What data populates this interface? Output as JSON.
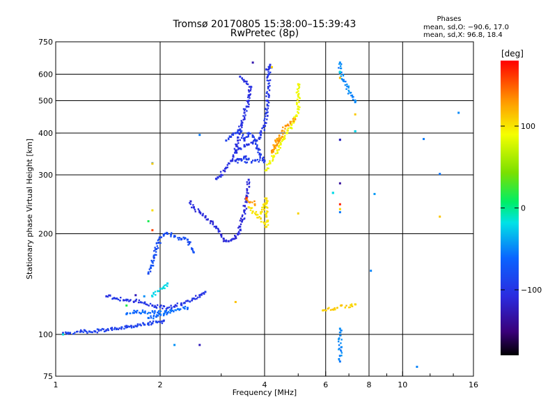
{
  "chart_data": {
    "type": "scatter",
    "title": "Tromsø 20170805 15:38:00–15:39:43",
    "subtitle": "RwPretec (8p)",
    "xlabel": "Frequency [MHz]",
    "ylabel": "Stationary phase Virtual Height [km]",
    "x_scale": "log",
    "y_scale": "log",
    "xlim": [
      1,
      16
    ],
    "ylim": [
      75,
      750
    ],
    "x_ticks": [
      1,
      2,
      4,
      6,
      8,
      10,
      16
    ],
    "y_ticks": [
      75,
      100,
      200,
      300,
      400,
      500,
      600,
      750
    ],
    "x_grid": [
      2,
      4,
      6,
      8,
      10
    ],
    "y_grid": [
      100,
      200,
      300,
      400,
      500,
      600
    ],
    "stats": {
      "heading": "Phases",
      "line_o": "mean, sd,O: −90.6, 17.0",
      "line_x": "mean, sd,X:  96.8, 18.4"
    },
    "colorbar": {
      "label": "[deg]",
      "range": [
        -180,
        180
      ],
      "ticks": [
        100,
        0,
        -100
      ]
    },
    "series": [
      {
        "phase": -90,
        "points": [
          [
            1.05,
            101
          ],
          [
            1.1,
            101
          ],
          [
            1.18,
            102
          ],
          [
            1.25,
            102
          ],
          [
            1.3,
            102
          ],
          [
            1.35,
            103
          ],
          [
            1.4,
            103
          ],
          [
            1.45,
            104
          ],
          [
            1.5,
            104
          ],
          [
            1.55,
            105
          ],
          [
            1.6,
            106
          ],
          [
            1.65,
            106
          ],
          [
            1.7,
            106
          ],
          [
            1.75,
            107
          ],
          [
            1.8,
            107
          ],
          [
            1.85,
            108
          ],
          [
            1.9,
            108
          ],
          [
            1.95,
            109
          ],
          [
            2.0,
            109
          ],
          [
            2.05,
            110
          ]
        ]
      },
      {
        "phase": -100,
        "points": [
          [
            1.4,
            130
          ],
          [
            1.5,
            128
          ],
          [
            1.6,
            127
          ],
          [
            1.7,
            126
          ],
          [
            1.8,
            124
          ],
          [
            1.9,
            122
          ],
          [
            2.0,
            121
          ],
          [
            2.1,
            120
          ],
          [
            2.2,
            121
          ],
          [
            2.3,
            123
          ],
          [
            2.4,
            126
          ],
          [
            2.5,
            128
          ],
          [
            2.6,
            131
          ],
          [
            2.7,
            134
          ]
        ]
      },
      {
        "phase": -60,
        "points": [
          [
            1.85,
            112
          ],
          [
            1.95,
            113
          ],
          [
            2.05,
            115
          ],
          [
            2.15,
            118
          ],
          [
            2.25,
            119
          ],
          [
            2.4,
            120
          ],
          [
            1.6,
            115
          ],
          [
            1.7,
            117
          ],
          [
            2.1,
            116
          ]
        ]
      },
      {
        "phase": -80,
        "points": [
          [
            1.85,
            152
          ],
          [
            1.88,
            158
          ],
          [
            1.9,
            165
          ],
          [
            1.92,
            172
          ],
          [
            1.95,
            180
          ],
          [
            1.98,
            188
          ],
          [
            2.0,
            195
          ],
          [
            2.05,
            199
          ],
          [
            2.1,
            200
          ],
          [
            2.15,
            199
          ],
          [
            2.2,
            197
          ],
          [
            2.3,
            193
          ],
          [
            2.4,
            192
          ],
          [
            2.5,
            176
          ]
        ]
      },
      {
        "phase": -110,
        "points": [
          [
            2.45,
            250
          ],
          [
            2.5,
            240
          ],
          [
            2.6,
            232
          ],
          [
            2.7,
            224
          ],
          [
            2.8,
            218
          ],
          [
            2.9,
            210
          ],
          [
            3.0,
            198
          ],
          [
            3.05,
            193
          ],
          [
            3.1,
            190
          ],
          [
            3.15,
            190
          ],
          [
            3.2,
            191
          ],
          [
            3.25,
            193
          ],
          [
            3.3,
            196
          ],
          [
            3.35,
            200
          ],
          [
            3.4,
            210
          ],
          [
            3.45,
            220
          ],
          [
            3.5,
            235
          ],
          [
            3.55,
            260
          ],
          [
            3.6,
            290
          ]
        ]
      },
      {
        "phase": -105,
        "points": [
          [
            2.9,
            292
          ],
          [
            3.0,
            300
          ],
          [
            3.1,
            315
          ],
          [
            3.2,
            330
          ],
          [
            3.25,
            340
          ],
          [
            3.3,
            355
          ],
          [
            3.35,
            380
          ],
          [
            3.4,
            410
          ],
          [
            3.45,
            430
          ],
          [
            3.5,
            460
          ],
          [
            3.55,
            480
          ],
          [
            3.6,
            500
          ],
          [
            3.62,
            520
          ],
          [
            3.65,
            550
          ],
          [
            3.4,
            590
          ]
        ]
      },
      {
        "phase": -100,
        "points": [
          [
            3.3,
            350
          ],
          [
            3.4,
            360
          ],
          [
            3.5,
            365
          ],
          [
            3.6,
            370
          ],
          [
            3.7,
            375
          ],
          [
            3.8,
            380
          ],
          [
            3.9,
            395
          ],
          [
            4.0,
            420
          ],
          [
            4.05,
            460
          ],
          [
            4.08,
            500
          ],
          [
            4.1,
            550
          ],
          [
            4.12,
            600
          ],
          [
            4.15,
            640
          ],
          [
            4.05,
            620
          ]
        ]
      },
      {
        "phase": -95,
        "points": [
          [
            3.1,
            380
          ],
          [
            3.2,
            390
          ],
          [
            3.3,
            400
          ],
          [
            3.4,
            410
          ],
          [
            3.5,
            380
          ],
          [
            3.6,
            400
          ],
          [
            3.7,
            390
          ],
          [
            3.8,
            360
          ],
          [
            3.9,
            345
          ],
          [
            4.0,
            330
          ],
          [
            3.3,
            330
          ],
          [
            3.5,
            340
          ],
          [
            3.6,
            335
          ]
        ]
      },
      {
        "phase": 90,
        "points": [
          [
            4.05,
            310
          ],
          [
            4.15,
            325
          ],
          [
            4.25,
            340
          ],
          [
            4.35,
            355
          ],
          [
            4.45,
            370
          ],
          [
            4.55,
            385
          ],
          [
            4.65,
            400
          ],
          [
            4.75,
            415
          ],
          [
            4.85,
            430
          ],
          [
            4.95,
            450
          ],
          [
            5.0,
            480
          ],
          [
            5.0,
            520
          ],
          [
            5.0,
            560
          ]
        ]
      },
      {
        "phase": 100,
        "points": [
          [
            3.6,
            240
          ],
          [
            3.7,
            233
          ],
          [
            3.8,
            228
          ],
          [
            3.9,
            222
          ],
          [
            4.0,
            215
          ],
          [
            4.05,
            210
          ],
          [
            4.05,
            225
          ],
          [
            4.05,
            240
          ],
          [
            4.05,
            255
          ],
          [
            4.0,
            245
          ],
          [
            3.9,
            230
          ]
        ]
      },
      {
        "phase": 130,
        "points": [
          [
            4.3,
            380
          ],
          [
            4.5,
            390
          ],
          [
            4.2,
            350
          ],
          [
            4.6,
            420
          ],
          [
            4.9,
            440
          ],
          [
            3.55,
            255
          ],
          [
            3.75,
            245
          ]
        ]
      },
      {
        "phase": -50,
        "points": [
          [
            1.9,
            325
          ],
          [
            2.6,
            395
          ],
          [
            6.6,
            650
          ],
          [
            6.6,
            605
          ],
          [
            7.3,
            495
          ],
          [
            8.3,
            263
          ],
          [
            11.5,
            384
          ],
          [
            14.5,
            460
          ],
          [
            12.8,
            302
          ],
          [
            6.6,
            382
          ],
          [
            6.6,
            232
          ],
          [
            7.3,
            405
          ],
          [
            6.3,
            265
          ],
          [
            8.1,
            155
          ],
          [
            6.6,
            104
          ],
          [
            6.6,
            83
          ],
          [
            11.0,
            80
          ],
          [
            1.8,
            130
          ],
          [
            2.2,
            93
          ]
        ]
      },
      {
        "phase": 110,
        "points": [
          [
            1.9,
            324
          ],
          [
            6.6,
            585
          ],
          [
            12.8,
            225
          ],
          [
            5.9,
            118
          ],
          [
            7.3,
            123
          ],
          [
            6.6,
            237
          ],
          [
            4.2,
            630
          ],
          [
            5.0,
            230
          ],
          [
            3.3,
            125
          ],
          [
            7.3,
            455
          ],
          [
            1.9,
            235
          ]
        ]
      },
      {
        "phase": -130,
        "points": [
          [
            3.7,
            650
          ],
          [
            6.6,
            283
          ],
          [
            6.6,
            382
          ],
          [
            2.6,
            93
          ],
          [
            1.7,
            131
          ]
        ]
      },
      {
        "phase": -20,
        "points": [
          [
            6.6,
            610
          ],
          [
            6.3,
            265
          ],
          [
            1.05,
            100
          ],
          [
            1.9,
            130
          ],
          [
            2.1,
            142
          ],
          [
            7.3,
            405
          ]
        ]
      },
      {
        "phase": 20,
        "points": [
          [
            1.85,
            218
          ],
          [
            1.6,
            122
          ]
        ]
      },
      {
        "phase": 165,
        "points": [
          [
            1.9,
            205
          ],
          [
            3.55,
            256
          ],
          [
            6.6,
            245
          ]
        ]
      }
    ]
  }
}
